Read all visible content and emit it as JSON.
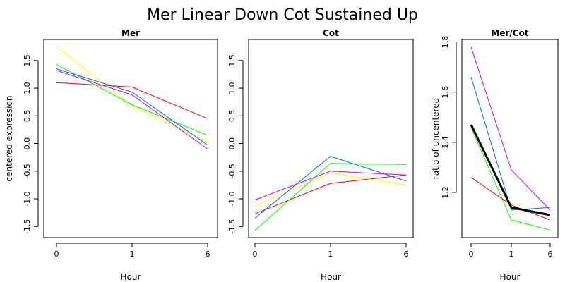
{
  "figure": {
    "title": "Mer Linear Down Cot Sustained Up"
  },
  "chart_data": [
    {
      "type": "line",
      "title": "Mer",
      "xlabel": "Hour",
      "ylabel": "centered expression",
      "categories": [
        "0",
        "1",
        "6"
      ],
      "ylim": [
        -1.7,
        1.88
      ],
      "yticks": [
        "-1.5",
        "-1.0",
        "-0.5",
        "0.0",
        "0.5",
        "1.0",
        "1.5"
      ],
      "grid": false,
      "series": [
        {
          "color": "#ff0000",
          "values": [
            1.1,
            1.02,
            0.45
          ]
        },
        {
          "color": "#ffff00",
          "values": [
            1.75,
            0.68,
            0.03
          ]
        },
        {
          "color": "#00ff00",
          "values": [
            1.43,
            0.7,
            0.15
          ]
        },
        {
          "color": "#0066ff",
          "values": [
            1.35,
            0.93,
            -0.03
          ]
        },
        {
          "color": "#cc00ff",
          "values": [
            1.32,
            0.88,
            -0.1
          ]
        }
      ]
    },
    {
      "type": "line",
      "title": "Cot",
      "xlabel": "Hour",
      "ylabel": "",
      "categories": [
        "0",
        "1",
        "6"
      ],
      "ylim": [
        -1.7,
        1.88
      ],
      "yticks": [
        "-1.5",
        "-1.0",
        "-0.5",
        "0.0",
        "0.5",
        "1.0",
        "1.5"
      ],
      "grid": false,
      "series": [
        {
          "color": "#ff0000",
          "values": [
            -1.27,
            -0.72,
            -0.57
          ]
        },
        {
          "color": "#ffff00",
          "values": [
            -1.13,
            -0.53,
            -0.75
          ]
        },
        {
          "color": "#00ff00",
          "values": [
            -1.57,
            -0.36,
            -0.38
          ]
        },
        {
          "color": "#0066ff",
          "values": [
            -1.35,
            -0.23,
            -0.68
          ]
        },
        {
          "color": "#cc00ff",
          "values": [
            -1.02,
            -0.5,
            -0.57
          ]
        }
      ]
    },
    {
      "type": "line",
      "title": "Mer/Cot",
      "xlabel": "Hour",
      "ylabel": "ratio of uncentered",
      "categories": [
        "0",
        "1",
        "6"
      ],
      "ylim": [
        1.02,
        1.81
      ],
      "yticks": [
        "1.2",
        "1.4",
        "1.6",
        "1.8"
      ],
      "grid": false,
      "series": [
        {
          "color": "#cc00ff",
          "values": [
            1.78,
            1.29,
            1.13
          ]
        },
        {
          "color": "#0066ff",
          "values": [
            1.66,
            1.13,
            1.14
          ]
        },
        {
          "color": "#ffff00",
          "values": [
            1.46,
            1.14,
            1.11
          ]
        },
        {
          "color": "#00ff00",
          "values": [
            1.46,
            1.09,
            1.05
          ]
        },
        {
          "color": "#ff0000",
          "values": [
            1.26,
            1.15,
            1.09
          ]
        },
        {
          "color": "#000000",
          "values": [
            1.47,
            1.14,
            1.11
          ],
          "bold": true
        }
      ]
    }
  ]
}
